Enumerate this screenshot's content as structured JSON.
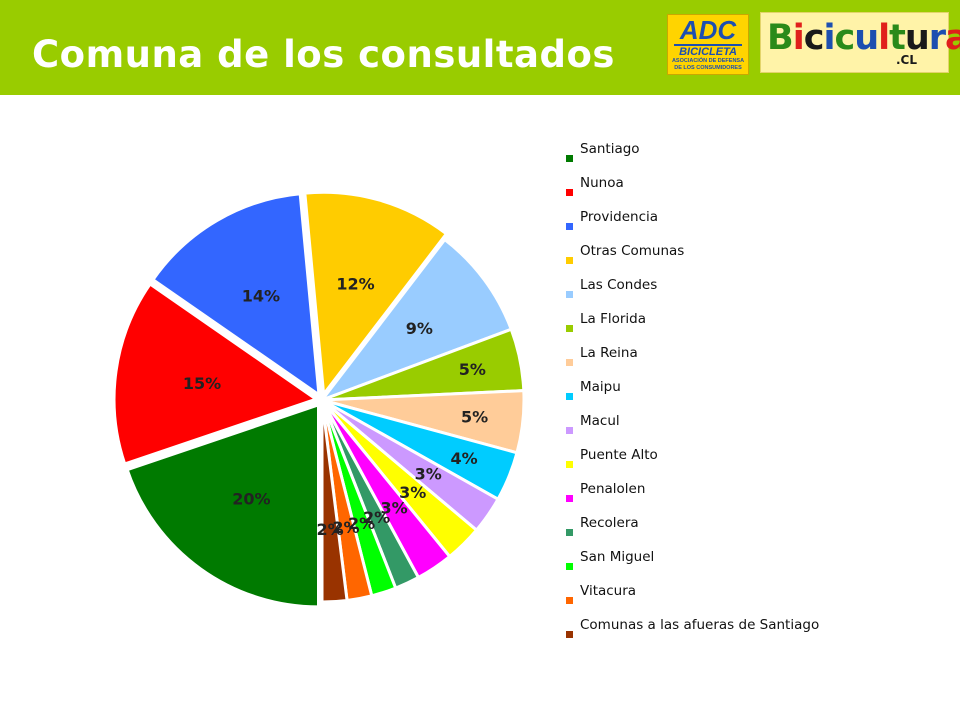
{
  "header": {
    "title": "Comuna de los consultados",
    "bg_color": "#99cc00"
  },
  "logos": {
    "adc": {
      "line1": "ADC",
      "line2": "BICICLETA",
      "line3": "ASOCIACIÓN DE DEFENSA",
      "line4": "DE LOS CONSUMIDORES"
    },
    "bicicultura": {
      "letters": [
        {
          "ch": "B",
          "color": "#2a8a1a"
        },
        {
          "ch": "i",
          "color": "#e0201b"
        },
        {
          "ch": "c",
          "color": "#1a1a1a"
        },
        {
          "ch": "i",
          "color": "#1d4fb0"
        },
        {
          "ch": "c",
          "color": "#2a8a1a"
        },
        {
          "ch": "u",
          "color": "#1d4fb0"
        },
        {
          "ch": "l",
          "color": "#e0201b"
        },
        {
          "ch": "t",
          "color": "#2a8a1a"
        },
        {
          "ch": "u",
          "color": "#1a1a1a"
        },
        {
          "ch": "r",
          "color": "#1d4fb0"
        },
        {
          "ch": "a",
          "color": "#e0201b"
        }
      ],
      "suffix": ".CL"
    }
  },
  "chart_data": {
    "type": "pie",
    "title": "",
    "legend_position": "right",
    "series": [
      {
        "name": "Santiago",
        "value": 20,
        "label": "20%",
        "color": "#007a00"
      },
      {
        "name": "Nunoa",
        "value": 15,
        "label": "15%",
        "color": "#ff0000"
      },
      {
        "name": "Providencia",
        "value": 14,
        "label": "14%",
        "color": "#3366ff"
      },
      {
        "name": "Otras Comunas",
        "value": 12,
        "label": "12%",
        "color": "#ffcc00"
      },
      {
        "name": "Las Condes",
        "value": 9,
        "label": "9%",
        "color": "#99ccff"
      },
      {
        "name": "La Florida",
        "value": 5,
        "label": "5%",
        "color": "#99cc00"
      },
      {
        "name": "La Reina",
        "value": 5,
        "label": "5%",
        "color": "#ffcc99"
      },
      {
        "name": "Maipu",
        "value": 4,
        "label": "4%",
        "color": "#00ccff"
      },
      {
        "name": "Macul",
        "value": 3,
        "label": "3%",
        "color": "#cc99ff"
      },
      {
        "name": "Puente Alto",
        "value": 3,
        "label": "3%",
        "color": "#ffff00"
      },
      {
        "name": "Penalolen",
        "value": 3,
        "label": "3%",
        "color": "#ff00ff"
      },
      {
        "name": "Recolera",
        "value": 2,
        "label": "2%",
        "color": "#339966"
      },
      {
        "name": "San Miguel",
        "value": 2,
        "label": "2%",
        "color": "#00ff00"
      },
      {
        "name": "Vitacura",
        "value": 2,
        "label": "2%",
        "color": "#ff6600"
      },
      {
        "name": "Comunas a las afueras de Santiago",
        "value": 2,
        "label": "2%",
        "color": "#993300"
      }
    ]
  }
}
